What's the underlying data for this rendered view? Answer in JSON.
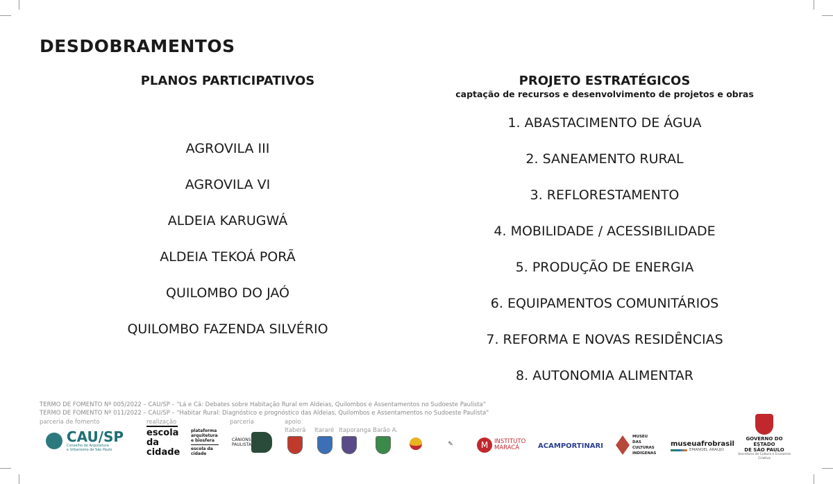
{
  "title": "DESDOBRAMENTOS",
  "left": {
    "heading": "PLANOS PARTICIPATIVOS",
    "items": [
      "AGROVILA III",
      "AGROVILA VI",
      "ALDEIA KARUGWÁ",
      "ALDEIA TEKOÁ PORÃ",
      "QUILOMBO DO JAÓ",
      "QUILOMBO FAZENDA SILVÉRIO"
    ]
  },
  "right": {
    "heading": "PROJETO ESTRATÉGICOS",
    "subtitle": "captação de recursos e desenvolvimento de projetos e obras",
    "items": [
      "1. ABASTACIMENTO DE ÁGUA",
      "2. SANEAMENTO RURAL",
      "3. REFLORESTAMENTO",
      "4. MOBILIDADE / ACESSIBILIDADE",
      "5. PRODUÇÃO DE ENERGIA",
      "6. EQUIPAMENTOS COMUNITÁRIOS",
      "7. REFORMA E NOVAS RESIDÊNCIAS",
      "8. AUTONOMIA ALIMENTAR"
    ]
  },
  "footer": {
    "termo1": "TERMO DE FOMENTO Nº 005/2022 – CAU/SP – \"Lá e Cá: Debates sobre Habitação Rural em Aldeias, Quilombos e Assentamentos no Sudoeste Paulista\"",
    "termo2": "TERMO DE FOMENTO Nº 011/2022 – CAU/SP – \"Habitar Rural: Diagnóstico e prognóstico das Aldeias, Quilombos e Assentamentos no Sudoeste Paulista\"",
    "labels": {
      "fomento": "parceria de fomento",
      "realizacao": "realização",
      "parceria": "parceria",
      "apoio": "apoio"
    },
    "cau": {
      "name": "CAU/SP",
      "sub1": "Conselho de Arquitetura",
      "sub2": "e Urbanismo de São Paulo"
    },
    "escola": "escola da cidade",
    "plataforma": "plataforma arquitetura e biosfera",
    "plataforma_sub": "escola da cidade",
    "canions": "CÂNIONS PAULISTAS",
    "cities": [
      "Itaberá",
      "Itararé",
      "Itaporanga",
      "Barão A."
    ],
    "maraca": "INSTITUTO MARACÁ",
    "acam": "ACAMPORTINARI",
    "museu_culturas": "MUSEU DAS CULTURAS INDÍGENAS",
    "afro": "museuafrobrasil",
    "afro_sub": "EMANOEL ARAUJO",
    "gov1": "GOVERNO DO ESTADO",
    "gov2": "DE SÃO PAULO",
    "gov_sub": "Secretaria de Cultura e Economia Criativa",
    "colors": {
      "cau": "#1f6f74",
      "maraca": "#c0282d",
      "acam": "#2a3f8f",
      "gov": "#c0282d"
    }
  }
}
